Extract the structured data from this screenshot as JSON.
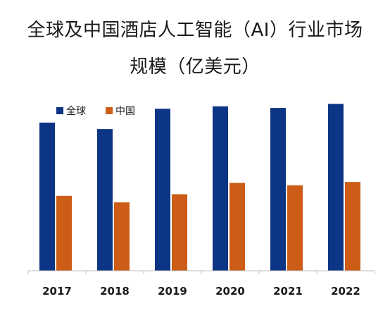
{
  "chart_data": {
    "type": "bar",
    "title_lines": [
      "全球及中国酒店人工智能（AI）行业市场",
      "规模（亿美元）"
    ],
    "categories": [
      "2017",
      "2018",
      "2019",
      "2020",
      "2021",
      "2022"
    ],
    "series": [
      {
        "name": "全球",
        "color": "#0d3585",
        "values": [
          182,
          174,
          199,
          202,
          200,
          205
        ]
      },
      {
        "name": "中国",
        "color": "#cc5c16",
        "values": [
          92,
          84,
          94,
          108,
          105,
          109
        ]
      }
    ],
    "xlabel": "",
    "ylabel": "",
    "ylim": [
      0,
      220
    ],
    "grid": false,
    "legend_position": "top-left"
  }
}
